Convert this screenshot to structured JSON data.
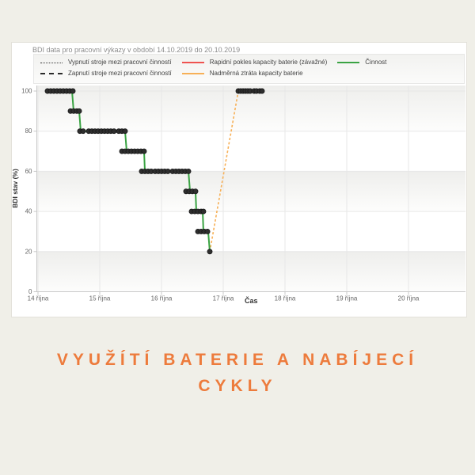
{
  "page": {
    "background": "#f0efe8"
  },
  "caption": {
    "line1": "VYUŽÍTÍ BATERIE A NABÍJECÍ",
    "line2": "CYKLY",
    "color": "#ed7b3c"
  },
  "chart_data": {
    "type": "line",
    "title": "BDI data pro pracovní výkazy v období 14.10.2019 do 20.10.2019",
    "xlabel": "Čas",
    "ylabel": "BDI stav (%)",
    "x_unit": "den (říjen 2019)",
    "xlim": [
      14,
      20.95
    ],
    "ylim": [
      0,
      102.8
    ],
    "grid": true,
    "alternating_bands": [
      [
        102.8,
        80
      ],
      [
        60,
        40
      ],
      [
        20,
        0
      ]
    ],
    "x_ticks": [
      {
        "value": 14,
        "label": "14 října"
      },
      {
        "value": 15,
        "label": "15 října"
      },
      {
        "value": 16,
        "label": "16 října"
      },
      {
        "value": 17,
        "label": "17 října"
      },
      {
        "value": 18,
        "label": "18 října"
      },
      {
        "value": 19,
        "label": "19 října"
      },
      {
        "value": 20,
        "label": "20 října"
      }
    ],
    "y_ticks": [
      {
        "value": 0,
        "label": "0"
      },
      {
        "value": 20,
        "label": "20"
      },
      {
        "value": 40,
        "label": "40"
      },
      {
        "value": 60,
        "label": "60"
      },
      {
        "value": 80,
        "label": "80"
      },
      {
        "value": 100,
        "label": "100"
      }
    ],
    "legend": {
      "position": "top",
      "items": [
        {
          "label": "Vypnutí stroje mezi pracovní činností",
          "style": "dotted",
          "color": "#3a3a3a"
        },
        {
          "label": "Zapnutí stroje mezi pracovní činností",
          "style": "dashed",
          "color": "#2b2b2b"
        },
        {
          "label": "Rapidní pokles kapacity baterie (závažné)",
          "style": "solid",
          "color": "#ef5350"
        },
        {
          "label": "Nadměrná ztráta kapacity baterie",
          "style": "solid",
          "color": "#f7b057"
        },
        {
          "label": "Činnost",
          "style": "solid",
          "color": "#3aa343"
        }
      ]
    },
    "series": [
      {
        "name": "Činnost",
        "color": "#3aa343",
        "style": "solid",
        "width": 2,
        "type": "step",
        "segments": [
          [
            [
              14.154,
              100
            ],
            [
              14.551,
              100
            ],
            [
              14.577,
              90
            ],
            [
              14.667,
              90
            ],
            [
              14.692,
              80
            ],
            [
              15.41,
              80
            ],
            [
              15.436,
              70
            ],
            [
              15.718,
              70
            ],
            [
              15.731,
              60
            ],
            [
              16.436,
              60
            ],
            [
              16.462,
              50
            ],
            [
              16.551,
              50
            ],
            [
              16.564,
              40
            ],
            [
              16.667,
              40
            ],
            [
              16.679,
              30
            ],
            [
              16.756,
              30
            ],
            [
              16.782,
              20
            ]
          ],
          [
            [
              17.244,
              100
            ],
            [
              17.628,
              100
            ]
          ]
        ]
      },
      {
        "name": "Nadměrná ztráta kapacity baterie",
        "color": "#f7b057",
        "style": "dashed",
        "width": 1.6,
        "type": "line",
        "segments": [
          [
            [
              16.782,
              20
            ],
            [
              17.244,
              100
            ]
          ]
        ]
      },
      {
        "name": "machine-state-markers",
        "color": "#2e2e2e",
        "type": "markers",
        "radius": 3.1,
        "clusters": [
          {
            "value": 100,
            "x": [
              14.154,
              14.205,
              14.256,
              14.308,
              14.359,
              14.41,
              14.462,
              14.513,
              14.564
            ]
          },
          {
            "value": 90,
            "x": [
              14.526,
              14.577,
              14.628,
              14.667
            ]
          },
          {
            "value": 80,
            "x": [
              14.679,
              14.731,
              14.821,
              14.872,
              14.923,
              14.974,
              15.026,
              15.077,
              15.128,
              15.179,
              15.231,
              15.308,
              15.359,
              15.41
            ]
          },
          {
            "value": 70,
            "x": [
              15.359,
              15.41,
              15.462,
              15.513,
              15.564,
              15.615,
              15.667,
              15.718
            ]
          },
          {
            "value": 60,
            "x": [
              15.679,
              15.731,
              15.782,
              15.833,
              15.897,
              15.949,
              16.0,
              16.051,
              16.103,
              16.179,
              16.231,
              16.282,
              16.333,
              16.385,
              16.436
            ]
          },
          {
            "value": 50,
            "x": [
              16.397,
              16.449,
              16.5,
              16.551
            ]
          },
          {
            "value": 40,
            "x": [
              16.487,
              16.538,
              16.59,
              16.641,
              16.679
            ]
          },
          {
            "value": 30,
            "x": [
              16.59,
              16.641,
              16.692,
              16.744
            ]
          },
          {
            "value": 20,
            "x": [
              16.782
            ]
          },
          {
            "value": 100,
            "x": [
              17.244,
              17.282,
              17.321,
              17.359,
              17.397,
              17.436,
              17.5,
              17.538,
              17.59,
              17.628
            ]
          }
        ]
      }
    ],
    "colors": {
      "grid": "#e7e7e7",
      "axis": "#c9c9c9",
      "tick_label": "#666666",
      "axis_title": "#333333",
      "band_top": "#eeeeec",
      "band_bottom": "#fdfdfc"
    }
  }
}
